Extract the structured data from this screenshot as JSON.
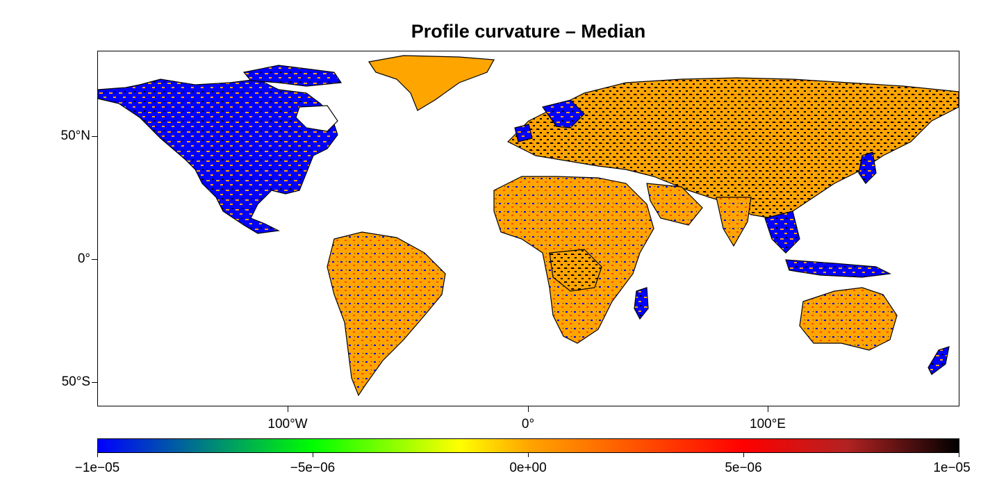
{
  "title": "Profile curvature – Median",
  "map": {
    "projection": "equirectangular",
    "lon_range": [
      -180,
      180
    ],
    "lat_range": [
      -60,
      85
    ],
    "x_ticks": [
      {
        "lon": -100,
        "label": "100°W"
      },
      {
        "lon": 0,
        "label": "0°"
      },
      {
        "lon": 100,
        "label": "100°E"
      }
    ],
    "y_ticks": [
      {
        "lat": 50,
        "label": "50°N"
      },
      {
        "lat": 0,
        "label": "0°"
      },
      {
        "lat": -50,
        "label": "50°S"
      }
    ],
    "land_colors": {
      "dominant_positive": "#ffa500",
      "dominant_negative": "#0000ff",
      "high_positive": "#000000",
      "mid_positive": "#ff4500",
      "mixed": "#5fbf3f"
    },
    "ocean_color": "#ffffff"
  },
  "colorbar": {
    "min": -1e-05,
    "max": 1e-05,
    "gradient": [
      "#0000ff",
      "#00ff00",
      "#ffff00",
      "#ffa500",
      "#ff0000",
      "#b22222",
      "#000000"
    ],
    "gradient_stops": [
      0,
      0.25,
      0.42,
      0.5,
      0.75,
      0.87,
      1
    ],
    "labels": [
      {
        "value": -1e-05,
        "label": "−1e−05"
      },
      {
        "value": -5e-06,
        "label": "−5e−06"
      },
      {
        "value": 0,
        "label": "0e+00"
      },
      {
        "value": 5e-06,
        "label": "5e−06"
      },
      {
        "value": 1e-05,
        "label": "1e−05"
      }
    ]
  }
}
